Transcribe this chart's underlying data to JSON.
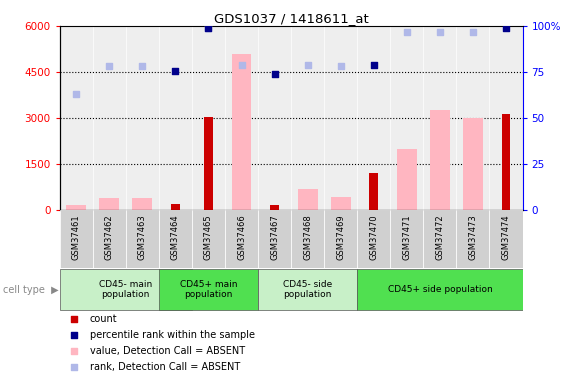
{
  "title": "GDS1037 / 1418611_at",
  "samples": [
    "GSM37461",
    "GSM37462",
    "GSM37463",
    "GSM37464",
    "GSM37465",
    "GSM37466",
    "GSM37467",
    "GSM37468",
    "GSM37469",
    "GSM37470",
    "GSM37471",
    "GSM37472",
    "GSM37473",
    "GSM37474"
  ],
  "count_values": [
    null,
    null,
    null,
    200,
    3050,
    null,
    160,
    null,
    null,
    1200,
    null,
    null,
    null,
    3150
  ],
  "pink_bar_values": [
    160,
    400,
    390,
    null,
    null,
    5100,
    null,
    680,
    420,
    null,
    2000,
    3250,
    3000,
    null
  ],
  "dark_blue_squares": [
    null,
    null,
    null,
    4550,
    5950,
    null,
    4450,
    null,
    null,
    4750,
    null,
    null,
    null,
    5950
  ],
  "light_blue_squares": [
    3800,
    4700,
    4700,
    null,
    5950,
    4750,
    null,
    4750,
    4700,
    null,
    5800,
    5800,
    5800,
    null
  ],
  "group_map": [
    {
      "start": 0,
      "end": 3,
      "label": "CD45- main\npopulation",
      "color": "#c8f0c8"
    },
    {
      "start": 3,
      "end": 5,
      "label": "CD45+ main\npopulation",
      "color": "#50e050"
    },
    {
      "start": 6,
      "end": 8,
      "label": "CD45- side\npopulation",
      "color": "#c8f0c8"
    },
    {
      "start": 9,
      "end": 13,
      "label": "CD45+ side population",
      "color": "#50e050"
    }
  ],
  "ylim_left": [
    0,
    6000
  ],
  "ylim_right": [
    0,
    100
  ],
  "yticks_left": [
    0,
    1500,
    3000,
    4500,
    6000
  ],
  "ytick_labels_left": [
    "0",
    "1500",
    "3000",
    "4500",
    "6000"
  ],
  "yticks_right": [
    0,
    25,
    50,
    75,
    100
  ],
  "ytick_labels_right": [
    "0",
    "25",
    "50",
    "75",
    "100%"
  ],
  "count_color": "#cc0000",
  "pink_bar_color": "#ffb6c1",
  "dark_blue_color": "#00008b",
  "light_blue_color": "#b0b8e8",
  "xticklabel_bg": "#d8d8d8",
  "legend_items": [
    {
      "color": "#cc0000",
      "label": "count"
    },
    {
      "color": "#00008b",
      "label": "percentile rank within the sample"
    },
    {
      "color": "#ffb6c1",
      "label": "value, Detection Call = ABSENT"
    },
    {
      "color": "#b0b8e8",
      "label": "rank, Detection Call = ABSENT"
    }
  ]
}
